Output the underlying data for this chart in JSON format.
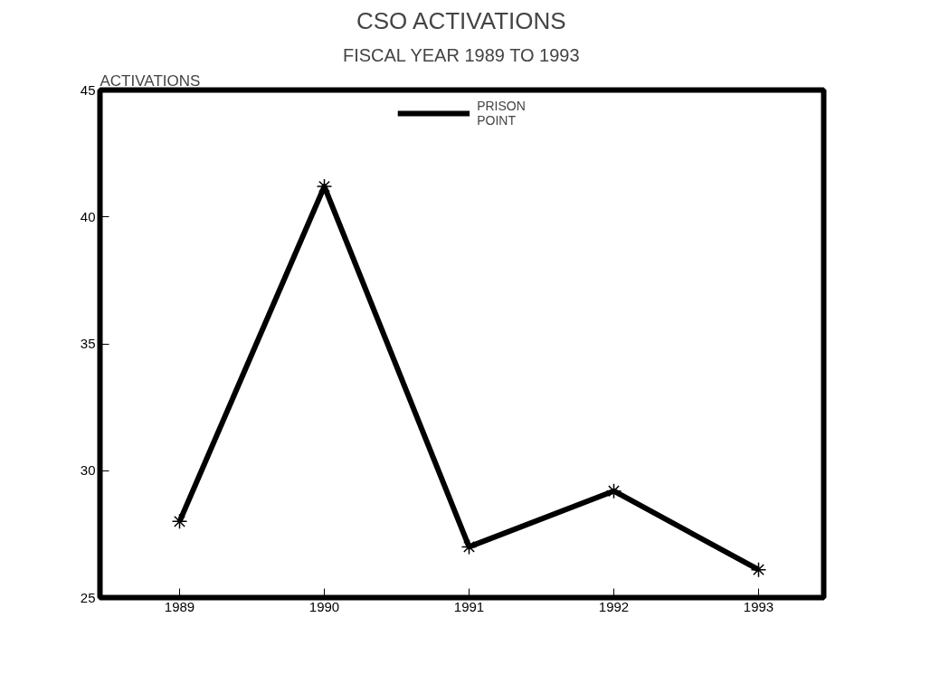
{
  "chart_data": {
    "type": "line",
    "title": "CSO ACTIVATIONS",
    "subtitle": "FISCAL YEAR 1989 TO 1993",
    "ylabel": "ACTIVATIONS",
    "categories": [
      "1989",
      "1990",
      "1991",
      "1992",
      "1993"
    ],
    "series": [
      {
        "name": "PRISON\nPOINT",
        "color": "#000000",
        "values": [
          28,
          41.2,
          27,
          29.2,
          26.1
        ]
      }
    ],
    "ylim": [
      25,
      45
    ],
    "yticks": [
      25,
      30,
      35,
      40,
      45
    ],
    "grid": false,
    "legend": "top",
    "marker": "cross",
    "line_style": "solid"
  }
}
